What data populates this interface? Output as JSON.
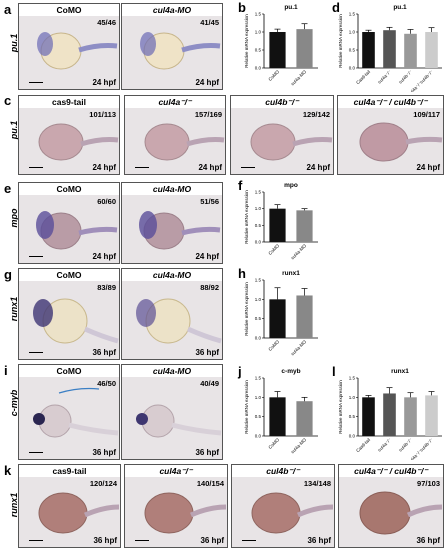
{
  "panels": [
    {
      "id": "a",
      "letter": "a",
      "gene": "pu.1",
      "images": [
        {
          "header": "CoMO",
          "italic": false,
          "ratio": "45/46",
          "hpf": "24 hpf"
        },
        {
          "header": "cul4a-MO",
          "italic": true,
          "ratio": "41/45",
          "hpf": "24 hpf"
        }
      ]
    },
    {
      "id": "c",
      "letter": "c",
      "gene": "pu.1",
      "images": [
        {
          "header": "cas9-tail",
          "italic": false,
          "ratio": "101/113",
          "hpf": "24 hpf"
        },
        {
          "header": "cul4a⁻/⁻",
          "italic": true,
          "ratio": "157/169",
          "hpf": "24 hpf"
        },
        {
          "header": "cul4b⁻/⁻",
          "italic": true,
          "ratio": "129/142",
          "hpf": "24 hpf"
        },
        {
          "header": "cul4a⁻/⁻ / cul4b⁻/⁻",
          "italic": true,
          "ratio": "109/117",
          "hpf": "24 hpf"
        }
      ]
    },
    {
      "id": "e",
      "letter": "e",
      "gene": "mpo",
      "images": [
        {
          "header": "CoMO",
          "italic": false,
          "ratio": "60/60",
          "hpf": "24 hpf"
        },
        {
          "header": "cul4a-MO",
          "italic": true,
          "ratio": "51/56",
          "hpf": "24 hpf"
        }
      ]
    },
    {
      "id": "g",
      "letter": "g",
      "gene": "runx1",
      "images": [
        {
          "header": "CoMO",
          "italic": false,
          "ratio": "83/89",
          "hpf": "36 hpf"
        },
        {
          "header": "cul4a-MO",
          "italic": true,
          "ratio": "88/92",
          "hpf": "36 hpf"
        }
      ]
    },
    {
      "id": "i",
      "letter": "i",
      "gene": "c-myb",
      "images": [
        {
          "header": "CoMO",
          "italic": false,
          "ratio": "46/50",
          "hpf": "36 hpf"
        },
        {
          "header": "cul4a-MO",
          "italic": true,
          "ratio": "40/49",
          "hpf": "36 hpf"
        }
      ]
    },
    {
      "id": "k",
      "letter": "k",
      "gene": "runx1",
      "images": [
        {
          "header": "cas9-tail",
          "italic": false,
          "ratio": "120/124",
          "hpf": "36 hpf"
        },
        {
          "header": "cul4a⁻/⁻",
          "italic": true,
          "ratio": "140/154",
          "hpf": "36 hpf"
        },
        {
          "header": "cul4b⁻/⁻",
          "italic": true,
          "ratio": "134/148",
          "hpf": "36 hpf"
        },
        {
          "header": "cul4a⁻/⁻ / cul4b⁻/⁻",
          "italic": true,
          "ratio": "97/103",
          "hpf": "36 hpf"
        }
      ]
    }
  ],
  "chart_data": [
    {
      "id": "b",
      "letter": "b",
      "type": "bar",
      "title": "pu.1",
      "ylabel": "Relative mRNA expression",
      "categories": [
        "CoMO",
        "cul4a-MO"
      ],
      "values": [
        1.0,
        1.08
      ],
      "errors": [
        0.08,
        0.15
      ],
      "colors": [
        "#111111",
        "#888888"
      ],
      "ylim": [
        0,
        1.5
      ],
      "yticks": [
        0,
        0.5,
        1.0,
        1.5
      ]
    },
    {
      "id": "d",
      "letter": "d",
      "type": "bar",
      "title": "pu.1",
      "ylabel": "Relative mRNA expression",
      "categories": [
        "Cas9-tail",
        "cul4a⁻/⁻",
        "cul4b⁻/⁻",
        "cul4a⁻/⁻cul4b⁻/⁻"
      ],
      "values": [
        1.0,
        1.05,
        0.95,
        1.0
      ],
      "errors": [
        0.05,
        0.08,
        0.12,
        0.12
      ],
      "colors": [
        "#111111",
        "#555555",
        "#999999",
        "#cccccc"
      ],
      "ylim": [
        0,
        1.5
      ],
      "yticks": [
        0,
        0.5,
        1.0,
        1.5
      ]
    },
    {
      "id": "f",
      "letter": "f",
      "type": "bar",
      "title": "mpo",
      "ylabel": "Relative mRNA expression",
      "categories": [
        "CoMO",
        "cul4a-MO"
      ],
      "values": [
        1.0,
        0.95
      ],
      "errors": [
        0.12,
        0.05
      ],
      "colors": [
        "#111111",
        "#888888"
      ],
      "ylim": [
        0,
        1.5
      ],
      "yticks": [
        0,
        0.5,
        1.0,
        1.5
      ]
    },
    {
      "id": "h",
      "letter": "h",
      "type": "bar",
      "title": "runx1",
      "ylabel": "Relative mRNA expression",
      "categories": [
        "CoMO",
        "cul4a-MO"
      ],
      "values": [
        1.0,
        1.1
      ],
      "errors": [
        0.3,
        0.18
      ],
      "colors": [
        "#111111",
        "#888888"
      ],
      "ylim": [
        0,
        1.5
      ],
      "yticks": [
        0,
        0.5,
        1.0,
        1.5
      ]
    },
    {
      "id": "j",
      "letter": "j",
      "type": "bar",
      "title": "c-myb",
      "ylabel": "Relative mRNA expression",
      "categories": [
        "CoMO",
        "cul4a-MO"
      ],
      "values": [
        1.0,
        0.9
      ],
      "errors": [
        0.15,
        0.1
      ],
      "colors": [
        "#111111",
        "#888888"
      ],
      "ylim": [
        0,
        1.5
      ],
      "yticks": [
        0,
        0.5,
        1.0,
        1.5
      ]
    },
    {
      "id": "l",
      "letter": "l",
      "type": "bar",
      "title": "runx1",
      "ylabel": "Relative mRNA expression",
      "categories": [
        "Cas9-tail",
        "cul4a⁻/⁻",
        "cul4b⁻/⁻",
        "cul4a⁻/⁻cul4b⁻/⁻"
      ],
      "values": [
        1.0,
        1.1,
        1.0,
        1.05
      ],
      "errors": [
        0.05,
        0.15,
        0.12,
        0.1
      ],
      "colors": [
        "#111111",
        "#555555",
        "#999999",
        "#cccccc"
      ],
      "ylim": [
        0,
        1.5
      ],
      "yticks": [
        0,
        0.5,
        1.0,
        1.5
      ]
    }
  ]
}
